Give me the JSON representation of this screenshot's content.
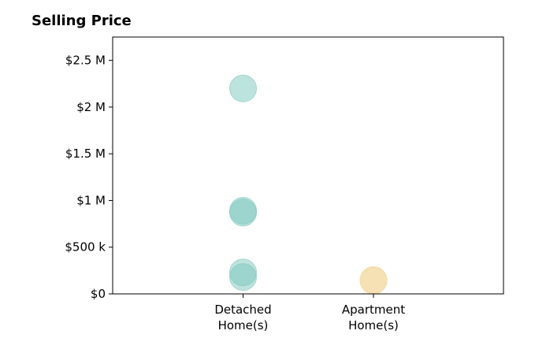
{
  "chart_data": {
    "type": "scatter",
    "title": "Selling Price",
    "categories": [
      "Detached\nHome(s)",
      "Apartment\nHome(s)"
    ],
    "ylim": [
      0,
      2750000
    ],
    "y_ticks": [
      {
        "value": 0,
        "label": "$0"
      },
      {
        "value": 500000,
        "label": "$500 k"
      },
      {
        "value": 1000000,
        "label": "$1 M"
      },
      {
        "value": 1500000,
        "label": "$1.5 M"
      },
      {
        "value": 2000000,
        "label": "$2 M"
      },
      {
        "value": 2500000,
        "label": "$2.5 M"
      }
    ],
    "series": [
      {
        "category_index": 0,
        "color": "#7cc8bd",
        "values": [
          2200000,
          890000,
          870000,
          230000,
          180000
        ]
      },
      {
        "category_index": 1,
        "color": "#f3d89b",
        "values": [
          150000,
          140000
        ]
      }
    ],
    "grid": false,
    "legend": "none"
  }
}
